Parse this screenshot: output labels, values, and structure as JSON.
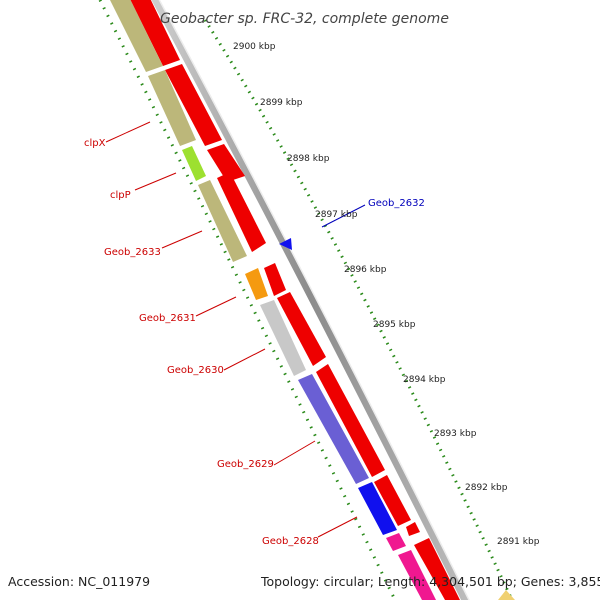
{
  "title": "Geobacter sp. FRC-32, complete genome",
  "footer": {
    "accession": "Accession: NC_011979",
    "topology": "Topology: circular; Length: 4,304,501 bp; Genes: 3,855"
  },
  "scale_ticks": [
    {
      "label": "2900 kbp",
      "kbp": 2900
    },
    {
      "label": "2899 kbp",
      "kbp": 2899
    },
    {
      "label": "2898 kbp",
      "kbp": 2898
    },
    {
      "label": "2897 kbp",
      "kbp": 2897
    },
    {
      "label": "2896 kbp",
      "kbp": 2896
    },
    {
      "label": "2895 kbp",
      "kbp": 2895
    },
    {
      "label": "2894 kbp",
      "kbp": 2894
    },
    {
      "label": "2893 kbp",
      "kbp": 2893
    },
    {
      "label": "2892 kbp",
      "kbp": 2892
    },
    {
      "label": "2891 kbp",
      "kbp": 2891
    }
  ],
  "gene_labels": [
    {
      "name": "clpX",
      "color": "#cc0000",
      "strand": "reverse"
    },
    {
      "name": "clpP",
      "color": "#cc0000",
      "strand": "reverse"
    },
    {
      "name": "Geob_2633",
      "color": "#cc0000",
      "strand": "reverse"
    },
    {
      "name": "Geob_2632",
      "color": "#0000bb",
      "strand": "forward"
    },
    {
      "name": "Geob_2631",
      "color": "#cc0000",
      "strand": "reverse"
    },
    {
      "name": "Geob_2630",
      "color": "#cc0000",
      "strand": "reverse"
    },
    {
      "name": "Geob_2629",
      "color": "#cc0000",
      "strand": "reverse"
    },
    {
      "name": "Geob_2628",
      "color": "#cc0000",
      "strand": "reverse"
    }
  ],
  "colors": {
    "cds": "#ee0000",
    "khaki": "#bcb77a",
    "lime": "#9de030",
    "orange": "#f59a10",
    "lightgray": "#c8c8c8",
    "slateblue": "#6a5fd4",
    "blue": "#1010ee",
    "pink": "#f01890",
    "backbone": "#999999",
    "tick_dots": "#2a8a1a"
  }
}
